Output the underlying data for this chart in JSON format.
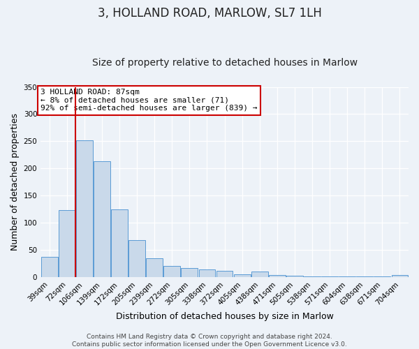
{
  "title": "3, HOLLAND ROAD, MARLOW, SL7 1LH",
  "subtitle": "Size of property relative to detached houses in Marlow",
  "xlabel": "Distribution of detached houses by size in Marlow",
  "ylabel": "Number of detached properties",
  "bar_labels": [
    "39sqm",
    "72sqm",
    "106sqm",
    "139sqm",
    "172sqm",
    "205sqm",
    "239sqm",
    "272sqm",
    "305sqm",
    "338sqm",
    "372sqm",
    "405sqm",
    "438sqm",
    "471sqm",
    "505sqm",
    "538sqm",
    "571sqm",
    "604sqm",
    "638sqm",
    "671sqm",
    "704sqm"
  ],
  "bar_values": [
    37,
    123,
    252,
    213,
    124,
    68,
    35,
    20,
    17,
    14,
    11,
    5,
    10,
    4,
    2,
    1,
    1,
    1,
    1,
    1,
    4
  ],
  "bar_color": "#c9d9ea",
  "bar_edge_color": "#5b9bd5",
  "vline_x": 1.5,
  "vline_color": "#cc0000",
  "ylim": [
    0,
    350
  ],
  "yticks": [
    0,
    50,
    100,
    150,
    200,
    250,
    300,
    350
  ],
  "annotation_title": "3 HOLLAND ROAD: 87sqm",
  "annotation_line1": "← 8% of detached houses are smaller (71)",
  "annotation_line2": "92% of semi-detached houses are larger (839) →",
  "annotation_box_facecolor": "#ffffff",
  "annotation_box_edgecolor": "#cc0000",
  "footer_line1": "Contains HM Land Registry data © Crown copyright and database right 2024.",
  "footer_line2": "Contains public sector information licensed under the Open Government Licence v3.0.",
  "background_color": "#edf2f8",
  "plot_background": "#edf2f8",
  "grid_color": "#ffffff",
  "title_fontsize": 12,
  "subtitle_fontsize": 10,
  "axis_label_fontsize": 9,
  "tick_fontsize": 7.5,
  "annotation_fontsize": 8,
  "footer_fontsize": 6.5
}
